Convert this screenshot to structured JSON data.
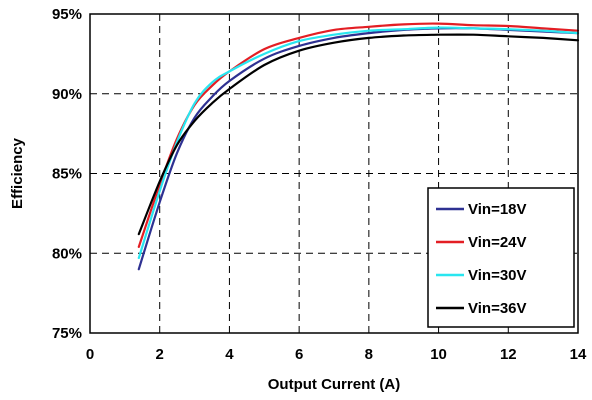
{
  "chart_data": {
    "type": "line",
    "title": "",
    "xlabel": "Output Current (A)",
    "ylabel": "Efficiency",
    "xlim": [
      0,
      14
    ],
    "ylim": [
      75,
      95
    ],
    "x_ticks": [
      0,
      2,
      4,
      6,
      8,
      10,
      12,
      14
    ],
    "x_tick_labels": [
      "0",
      "2",
      "4",
      "6",
      "8",
      "10",
      "12",
      "14"
    ],
    "y_ticks": [
      75,
      80,
      85,
      90,
      95
    ],
    "y_tick_labels": [
      "75%",
      "80%",
      "85%",
      "90%",
      "95%"
    ],
    "grid": true,
    "legend_position": "bottom-right",
    "series": [
      {
        "name": "Vin=18V",
        "color": "#2e3192",
        "points": [
          [
            1.4,
            79.0
          ],
          [
            2.0,
            83.2
          ],
          [
            2.5,
            86.3
          ],
          [
            3.0,
            88.5
          ],
          [
            3.5,
            89.8
          ],
          [
            4.0,
            90.8
          ],
          [
            5.0,
            92.2
          ],
          [
            6.0,
            93.0
          ],
          [
            7.0,
            93.5
          ],
          [
            8.0,
            93.8
          ],
          [
            9.0,
            94.0
          ],
          [
            10.0,
            94.1
          ],
          [
            11.0,
            94.1
          ],
          [
            12.0,
            94.0
          ],
          [
            13.0,
            93.9
          ],
          [
            14.0,
            93.8
          ]
        ]
      },
      {
        "name": "Vin=24V",
        "color": "#e31e24",
        "points": [
          [
            1.4,
            80.4
          ],
          [
            2.0,
            84.3
          ],
          [
            2.5,
            87.2
          ],
          [
            3.0,
            89.3
          ],
          [
            3.5,
            90.5
          ],
          [
            4.0,
            91.4
          ],
          [
            5.0,
            92.8
          ],
          [
            6.0,
            93.5
          ],
          [
            7.0,
            94.0
          ],
          [
            8.0,
            94.2
          ],
          [
            9.0,
            94.35
          ],
          [
            10.0,
            94.4
          ],
          [
            11.0,
            94.3
          ],
          [
            12.0,
            94.25
          ],
          [
            13.0,
            94.1
          ],
          [
            14.0,
            93.95
          ]
        ]
      },
      {
        "name": "Vin=30V",
        "color": "#29e6f0",
        "points": [
          [
            1.4,
            79.7
          ],
          [
            2.0,
            83.9
          ],
          [
            2.5,
            87.0
          ],
          [
            3.0,
            89.4
          ],
          [
            3.5,
            90.7
          ],
          [
            4.0,
            91.4
          ],
          [
            5.0,
            92.5
          ],
          [
            6.0,
            93.3
          ],
          [
            7.0,
            93.7
          ],
          [
            8.0,
            93.95
          ],
          [
            9.0,
            94.05
          ],
          [
            10.0,
            94.15
          ],
          [
            11.0,
            94.1
          ],
          [
            12.0,
            94.05
          ],
          [
            13.0,
            93.95
          ],
          [
            14.0,
            93.8
          ]
        ]
      },
      {
        "name": "Vin=36V",
        "color": "#000000",
        "points": [
          [
            1.4,
            81.2
          ],
          [
            2.0,
            84.5
          ],
          [
            2.5,
            86.8
          ],
          [
            3.0,
            88.3
          ],
          [
            3.5,
            89.4
          ],
          [
            4.0,
            90.3
          ],
          [
            5.0,
            91.8
          ],
          [
            6.0,
            92.7
          ],
          [
            7.0,
            93.2
          ],
          [
            8.0,
            93.5
          ],
          [
            9.0,
            93.65
          ],
          [
            10.0,
            93.7
          ],
          [
            11.0,
            93.7
          ],
          [
            12.0,
            93.6
          ],
          [
            13.0,
            93.5
          ],
          [
            14.0,
            93.35
          ]
        ]
      }
    ]
  }
}
